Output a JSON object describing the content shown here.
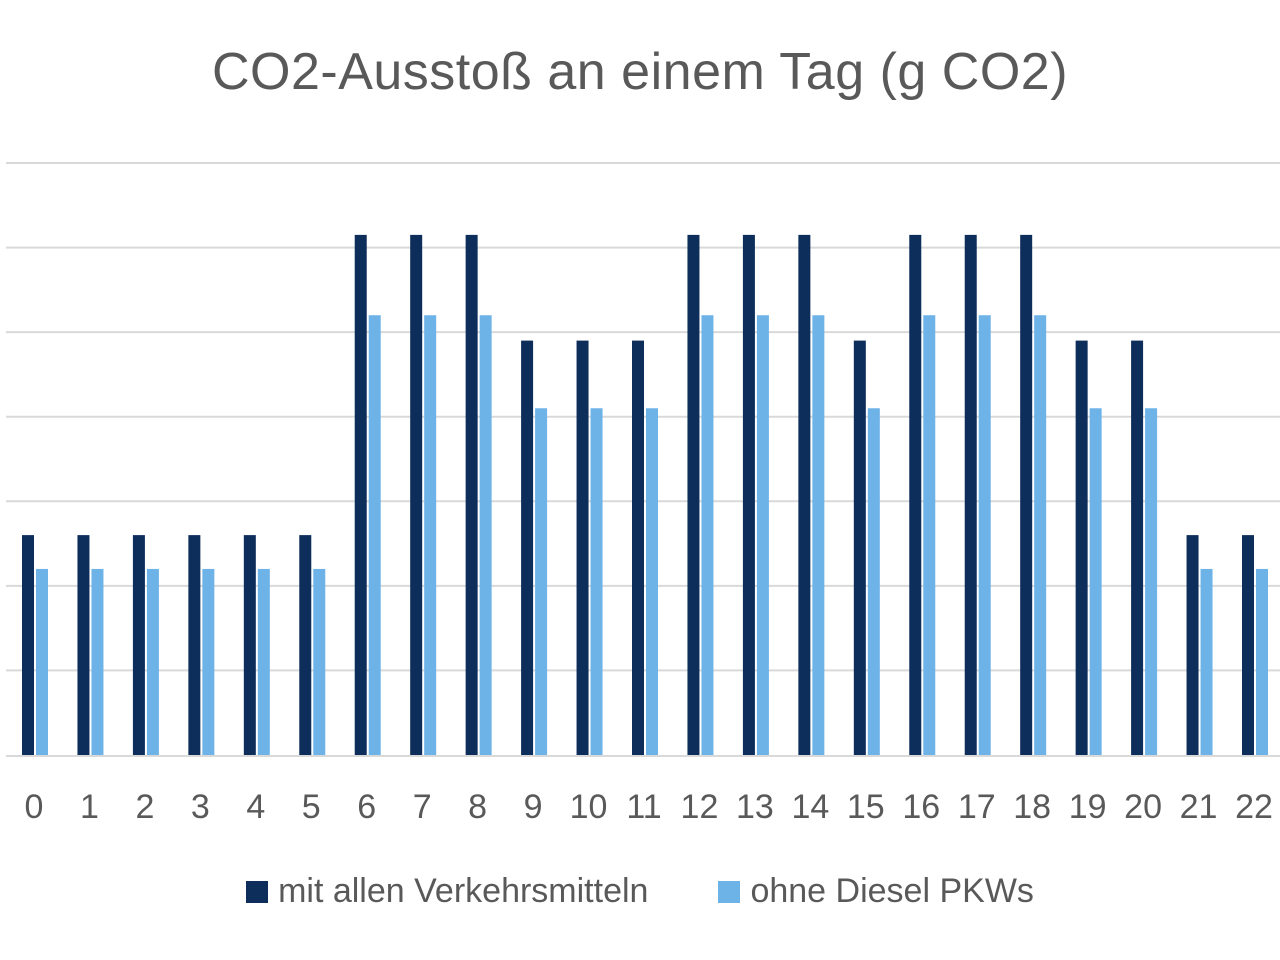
{
  "chart_data": {
    "type": "bar",
    "title": "CO2-Ausstoß an einem Tag (g CO2)",
    "xlabel": "",
    "ylabel": "",
    "categories": [
      "0",
      "1",
      "2",
      "3",
      "4",
      "5",
      "6",
      "7",
      "8",
      "9",
      "10",
      "11",
      "12",
      "13",
      "14",
      "15",
      "16",
      "17",
      "18",
      "19",
      "20",
      "21",
      "22"
    ],
    "ylim": [
      0,
      7
    ],
    "grid": true,
    "legend_position": "bottom",
    "series": [
      {
        "name": "mit allen Verkehrsmitteln",
        "color": "#0d2d5a",
        "values": [
          2.6,
          2.6,
          2.6,
          2.6,
          2.6,
          2.6,
          6.15,
          6.15,
          6.15,
          4.9,
          4.9,
          4.9,
          6.15,
          6.15,
          6.15,
          4.9,
          6.15,
          6.15,
          6.15,
          4.9,
          4.9,
          2.6,
          2.6
        ]
      },
      {
        "name": "ohne Diesel PKWs",
        "color": "#6db3e8",
        "values": [
          2.2,
          2.2,
          2.2,
          2.2,
          2.2,
          2.2,
          5.2,
          5.2,
          5.2,
          4.1,
          4.1,
          4.1,
          5.2,
          5.2,
          5.2,
          4.1,
          5.2,
          5.2,
          5.2,
          4.1,
          4.1,
          2.2,
          2.2
        ]
      }
    ]
  }
}
